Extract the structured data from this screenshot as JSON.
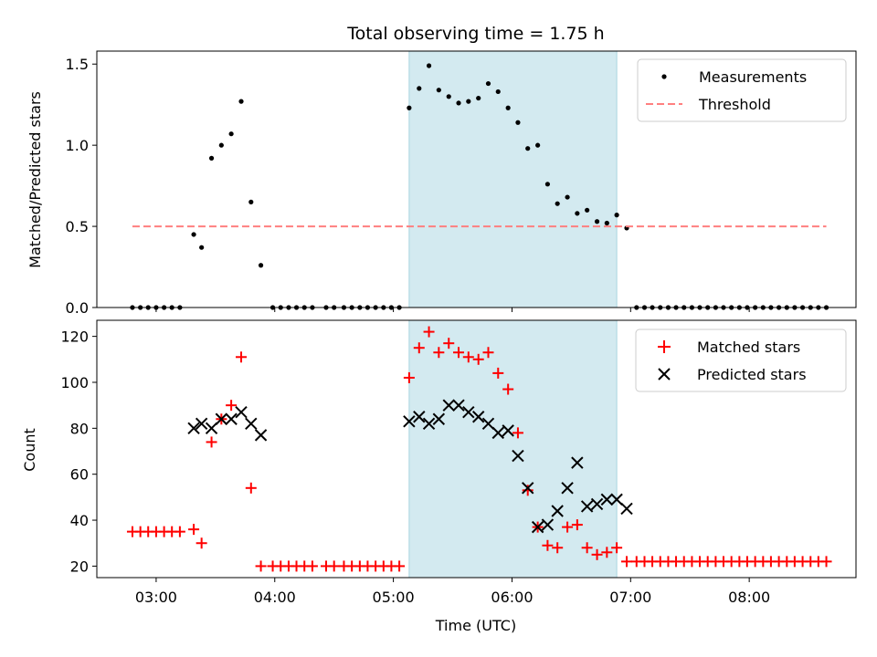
{
  "title": "Total observing time = 1.75 h",
  "x_tick_labels": [
    "03:00",
    "04:00",
    "05:00",
    "06:00",
    "07:00",
    "08:00"
  ],
  "shaded_color": "#d3eaf0",
  "chart_data": [
    {
      "type": "scatter",
      "panel": "top",
      "ylabel": "Matched/Predicted stars",
      "xlabel": "",
      "x_units": "hours UTC",
      "xlim": [
        2.5,
        8.9
      ],
      "ylim": [
        0,
        1.58
      ],
      "y_ticks": [
        0.0,
        0.5,
        1.0,
        1.5
      ],
      "y_tick_labels": [
        "0.0",
        "0.5",
        "1.0",
        "1.5"
      ],
      "shaded_region": [
        5.133,
        6.883
      ],
      "legend_position": "top-right",
      "series": [
        {
          "name": "Measurements",
          "marker": "dot",
          "color": "#000000",
          "x": [
            2.8,
            2.867,
            2.933,
            3.0,
            3.067,
            3.133,
            3.2,
            3.317,
            3.383,
            3.467,
            3.55,
            3.633,
            3.717,
            3.8,
            3.883,
            3.983,
            4.05,
            4.117,
            4.183,
            4.25,
            4.317,
            4.433,
            4.5,
            4.583,
            4.65,
            4.717,
            4.783,
            4.85,
            4.917,
            4.983,
            5.05,
            5.133,
            5.217,
            5.3,
            5.383,
            5.467,
            5.55,
            5.633,
            5.717,
            5.8,
            5.883,
            5.967,
            6.05,
            6.133,
            6.217,
            6.3,
            6.383,
            6.467,
            6.55,
            6.633,
            6.717,
            6.8,
            6.883,
            6.967,
            7.05,
            7.117,
            7.183,
            7.25,
            7.317,
            7.383,
            7.45,
            7.517,
            7.583,
            7.65,
            7.717,
            7.783,
            7.85,
            7.917,
            7.983,
            8.05,
            8.117,
            8.183,
            8.25,
            8.317,
            8.383,
            8.45,
            8.517,
            8.583,
            8.65
          ],
          "y": [
            0,
            0,
            0,
            0,
            0,
            0,
            0,
            0.45,
            0.37,
            0.92,
            1.0,
            1.07,
            1.27,
            0.65,
            0.26,
            0,
            0,
            0,
            0,
            0,
            0,
            0,
            0,
            0,
            0,
            0,
            0,
            0,
            0,
            0,
            0,
            1.23,
            1.35,
            1.49,
            1.34,
            1.3,
            1.26,
            1.27,
            1.29,
            1.38,
            1.33,
            1.23,
            1.14,
            0.98,
            1.0,
            0.76,
            0.64,
            0.68,
            0.58,
            0.6,
            0.53,
            0.52,
            0.57,
            0.49,
            0,
            0,
            0,
            0,
            0,
            0,
            0,
            0,
            0,
            0,
            0,
            0,
            0,
            0,
            0,
            0,
            0,
            0,
            0,
            0,
            0,
            0,
            0,
            0,
            0
          ]
        },
        {
          "name": "Threshold",
          "marker": "dashed-line",
          "color": "#ff7f7f",
          "x": [
            2.8,
            8.65
          ],
          "y": [
            0.5,
            0.5
          ]
        }
      ]
    },
    {
      "type": "scatter",
      "panel": "bottom",
      "ylabel": "Count",
      "xlabel": "Time (UTC)",
      "x_units": "hours UTC",
      "xlim": [
        2.5,
        8.9
      ],
      "ylim": [
        15,
        127
      ],
      "y_ticks": [
        20,
        40,
        60,
        80,
        100,
        120
      ],
      "y_tick_labels": [
        "20",
        "40",
        "60",
        "80",
        "100",
        "120"
      ],
      "shaded_region": [
        5.133,
        6.883
      ],
      "legend_position": "top-right",
      "series": [
        {
          "name": "Matched stars",
          "marker": "plus",
          "color": "#ff0000",
          "x": [
            2.8,
            2.867,
            2.933,
            3.0,
            3.067,
            3.133,
            3.2,
            3.317,
            3.383,
            3.467,
            3.55,
            3.633,
            3.717,
            3.8,
            3.883,
            3.983,
            4.05,
            4.117,
            4.183,
            4.25,
            4.317,
            4.433,
            4.5,
            4.583,
            4.65,
            4.717,
            4.783,
            4.85,
            4.917,
            4.983,
            5.05,
            5.133,
            5.217,
            5.3,
            5.383,
            5.467,
            5.55,
            5.633,
            5.717,
            5.8,
            5.883,
            5.967,
            6.05,
            6.133,
            6.217,
            6.3,
            6.383,
            6.467,
            6.55,
            6.633,
            6.717,
            6.8,
            6.883,
            6.967,
            7.05,
            7.117,
            7.183,
            7.25,
            7.317,
            7.383,
            7.45,
            7.517,
            7.583,
            7.65,
            7.717,
            7.783,
            7.85,
            7.917,
            7.983,
            8.05,
            8.117,
            8.183,
            8.25,
            8.317,
            8.383,
            8.45,
            8.517,
            8.583,
            8.65
          ],
          "y": [
            35,
            35,
            35,
            35,
            35,
            35,
            35,
            36,
            30,
            74,
            84,
            90,
            111,
            54,
            20,
            20,
            20,
            20,
            20,
            20,
            20,
            20,
            20,
            20,
            20,
            20,
            20,
            20,
            20,
            20,
            20,
            102,
            115,
            122,
            113,
            117,
            113,
            111,
            110,
            113,
            104,
            97,
            78,
            53,
            37,
            29,
            28,
            37,
            38,
            28,
            25,
            26,
            28,
            22,
            22,
            22,
            22,
            22,
            22,
            22,
            22,
            22,
            22,
            22,
            22,
            22,
            22,
            22,
            22,
            22,
            22,
            22,
            22,
            22,
            22,
            22,
            22,
            22,
            22
          ]
        },
        {
          "name": "Predicted stars",
          "marker": "x",
          "color": "#000000",
          "x": [
            3.317,
            3.383,
            3.467,
            3.55,
            3.633,
            3.717,
            3.8,
            3.883,
            5.133,
            5.217,
            5.3,
            5.383,
            5.467,
            5.55,
            5.633,
            5.717,
            5.8,
            5.883,
            5.967,
            6.05,
            6.133,
            6.217,
            6.3,
            6.383,
            6.467,
            6.55,
            6.633,
            6.717,
            6.8,
            6.883,
            6.967
          ],
          "y": [
            80,
            82,
            80,
            84,
            84,
            87,
            82,
            77,
            83,
            85,
            82,
            84,
            90,
            90,
            87,
            85,
            82,
            78,
            79,
            68,
            54,
            37,
            38,
            44,
            54,
            65,
            46,
            47,
            49,
            49,
            45
          ]
        }
      ]
    }
  ]
}
